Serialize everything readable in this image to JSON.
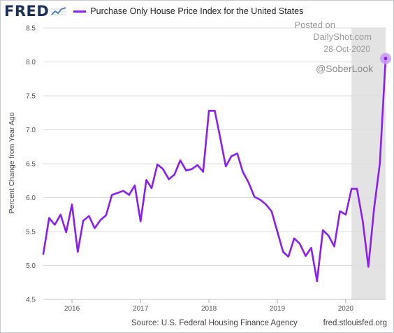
{
  "header": {
    "logo": "FRED",
    "logo_icon": "trend-line-chart-icon",
    "series_title": "Purchase Only House Price Index for the United States"
  },
  "watermark": {
    "posted_on": "Posted on",
    "site": "DailyShot.com",
    "date": "28-Oct-2020",
    "handle": "@SoberLook"
  },
  "footer": {
    "source": "Source: U.S. Federal Housing Finance Agency",
    "url": "fred.stlouisfed.org"
  },
  "colors": {
    "series": "#8a1ef0",
    "recession_shading": "#e3e3e3",
    "grid": "#dcdcdc",
    "logo": "#1c2f5c",
    "marker": "#c89af5"
  },
  "chart_data": {
    "type": "line",
    "title": "Purchase Only House Price Index for the United States",
    "ylabel": "Percent Change from Year Ago",
    "xlabel": "",
    "ylim": [
      4.5,
      8.5
    ],
    "xlim": [
      "2015-08-01",
      "2020-08-01"
    ],
    "yticks": [
      "4.5",
      "5.0",
      "5.5",
      "6.0",
      "6.5",
      "7.0",
      "7.5",
      "8.0",
      "8.5"
    ],
    "xticks": [
      "2016",
      "2017",
      "2018",
      "2019",
      "2020"
    ],
    "grid": "horizontal",
    "shaded_region": {
      "start": "2020-02-01",
      "end": "2020-08-01"
    },
    "series": [
      {
        "x": [
          "2015-08-01",
          "2015-09-01",
          "2015-10-01",
          "2015-11-01",
          "2015-12-01",
          "2016-01-01",
          "2016-02-01",
          "2016-03-01",
          "2016-04-01",
          "2016-05-01",
          "2016-06-01",
          "2016-07-01",
          "2016-08-01",
          "2016-09-01",
          "2016-10-01",
          "2016-11-01",
          "2016-12-01",
          "2017-01-01",
          "2017-02-01",
          "2017-03-01",
          "2017-04-01",
          "2017-05-01",
          "2017-06-01",
          "2017-07-01",
          "2017-08-01",
          "2017-09-01",
          "2017-10-01",
          "2017-11-01",
          "2017-12-01",
          "2018-01-01",
          "2018-02-01",
          "2018-03-01",
          "2018-04-01",
          "2018-05-01",
          "2018-06-01",
          "2018-07-01",
          "2018-08-01",
          "2018-09-01",
          "2018-10-01",
          "2018-11-01",
          "2018-12-01",
          "2019-01-01",
          "2019-02-01",
          "2019-03-01",
          "2019-04-01",
          "2019-05-01",
          "2019-06-01",
          "2019-07-01",
          "2019-08-01",
          "2019-09-01",
          "2019-10-01",
          "2019-11-01",
          "2019-12-01",
          "2020-01-01",
          "2020-02-01",
          "2020-03-01",
          "2020-04-01",
          "2020-05-01",
          "2020-06-01",
          "2020-07-01",
          "2020-08-01"
        ],
        "values": [
          5.17,
          5.7,
          5.6,
          5.75,
          5.49,
          5.9,
          5.2,
          5.66,
          5.73,
          5.55,
          5.67,
          5.74,
          6.04,
          6.07,
          6.1,
          6.04,
          6.18,
          5.65,
          6.26,
          6.14,
          6.49,
          6.42,
          6.27,
          6.34,
          6.55,
          6.4,
          6.42,
          6.48,
          6.38,
          7.28,
          7.28,
          6.9,
          6.46,
          6.61,
          6.65,
          6.38,
          6.22,
          6.01,
          5.97,
          5.9,
          5.8,
          5.5,
          5.2,
          5.13,
          5.4,
          5.32,
          5.14,
          5.26,
          4.77,
          5.52,
          5.44,
          5.28,
          5.8,
          5.75,
          6.13,
          6.13,
          5.65,
          4.98,
          5.85,
          6.5,
          8.05
        ]
      }
    ]
  }
}
